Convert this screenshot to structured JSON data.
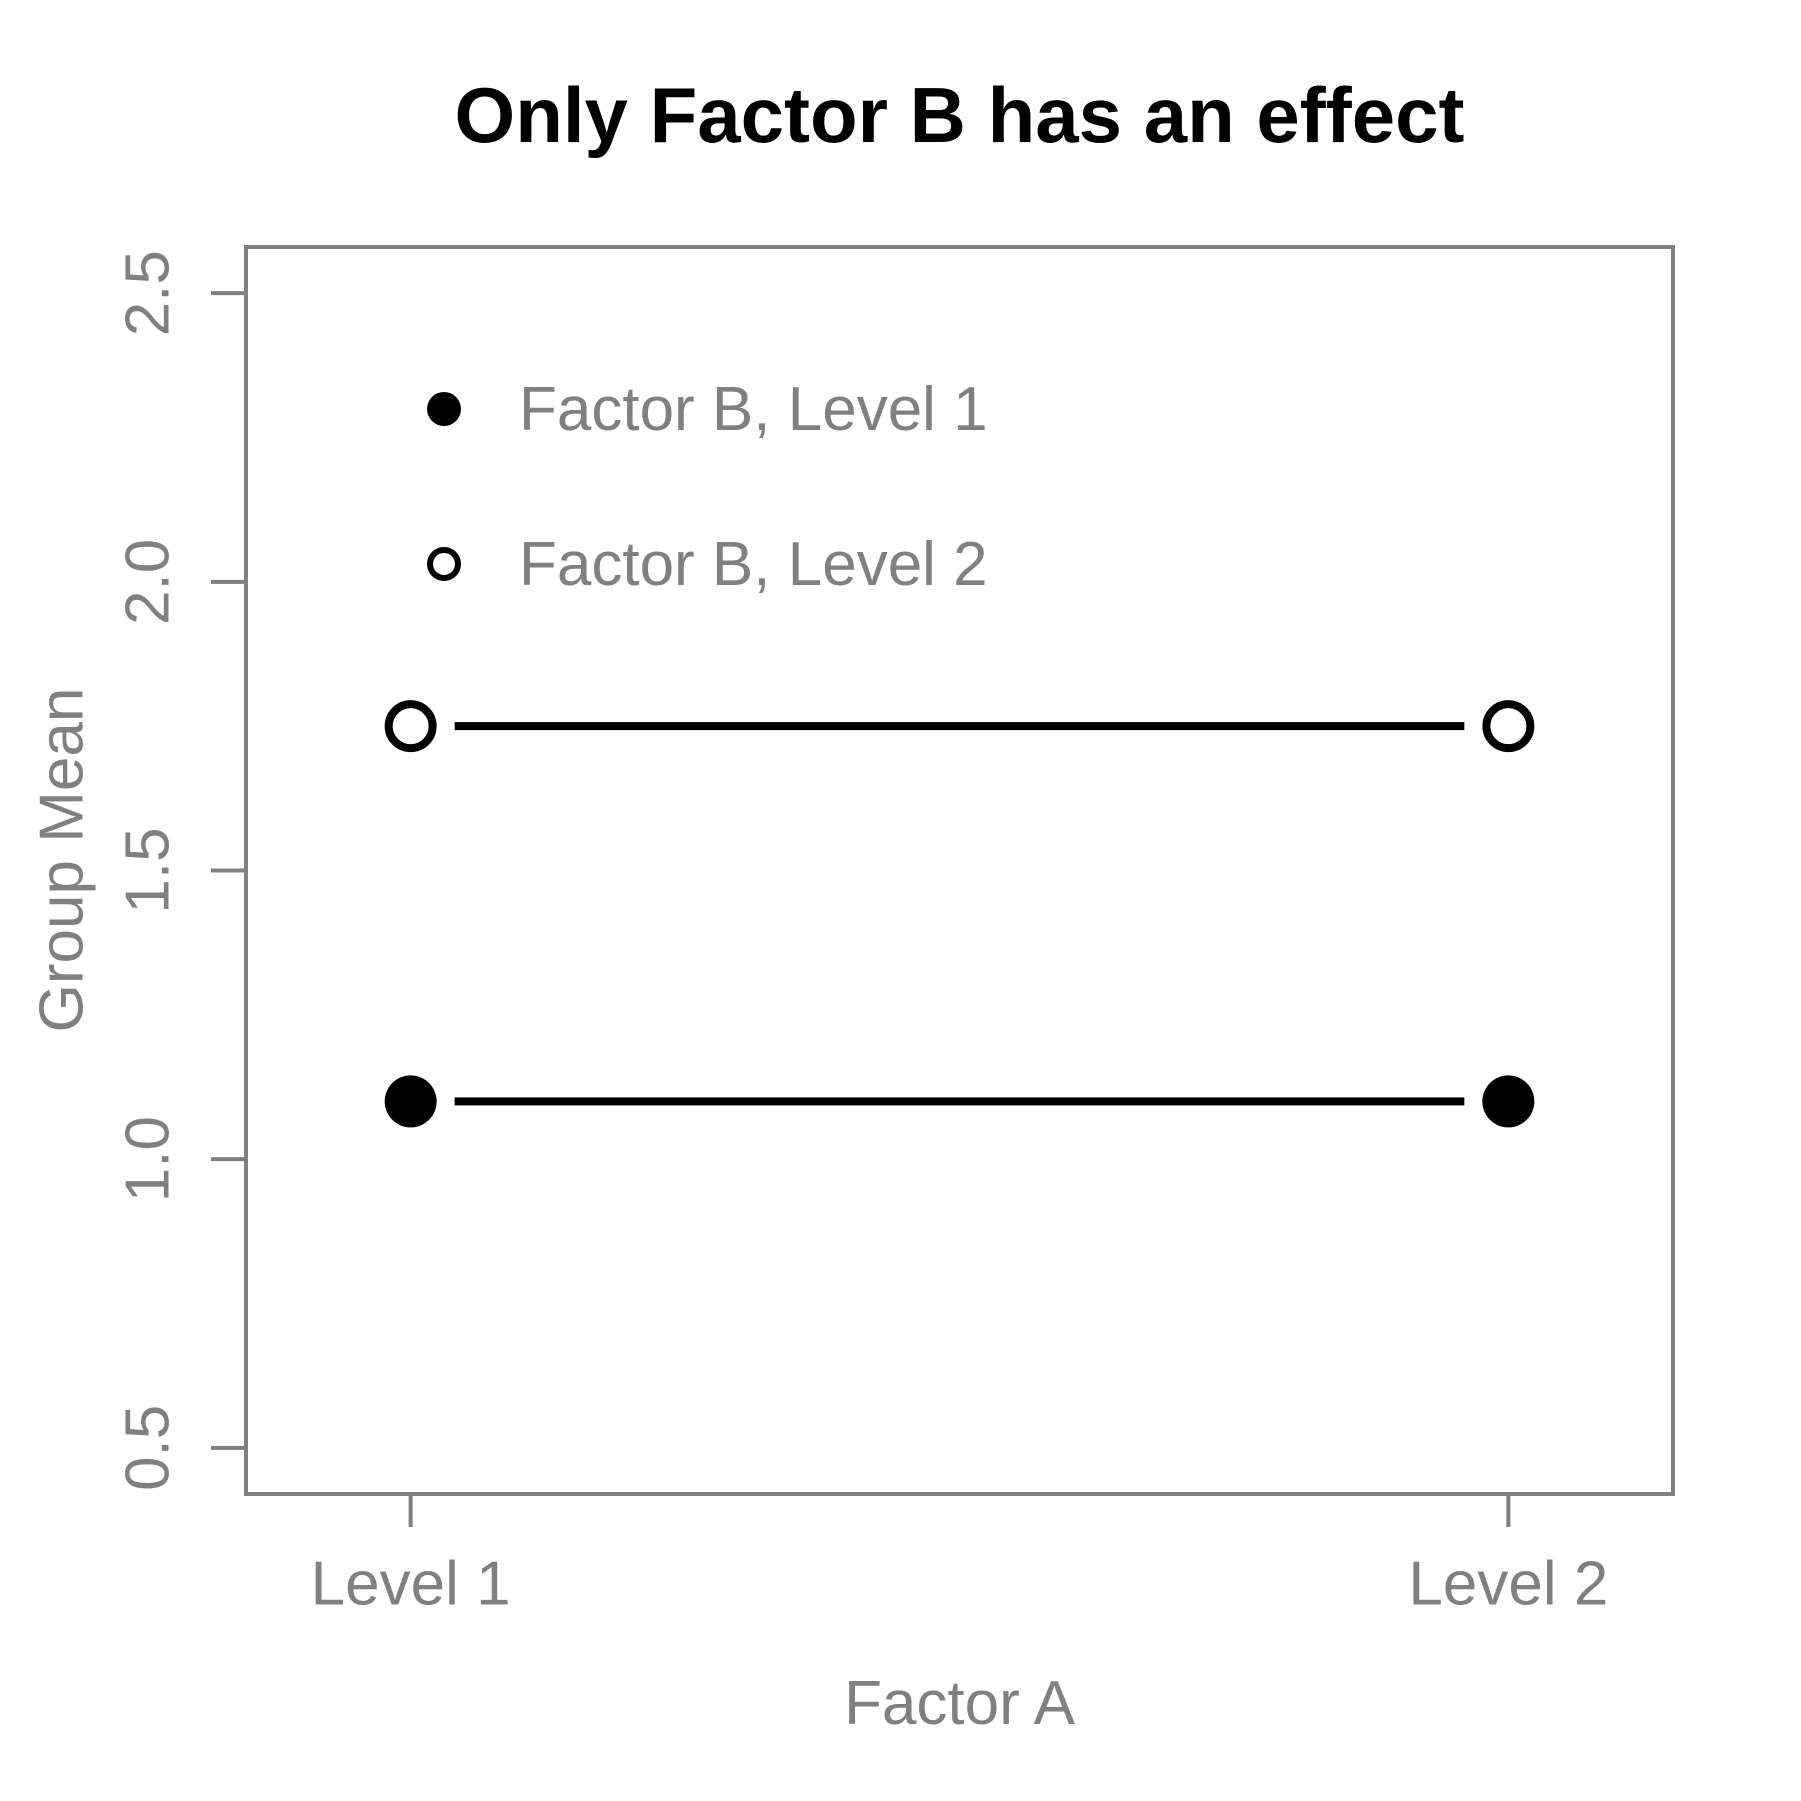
{
  "chart_data": {
    "type": "line",
    "title": "Only Factor B has an effect",
    "xlabel": "Factor A",
    "ylabel": "Group Mean",
    "x_categories": [
      "Level 1",
      "Level 2"
    ],
    "x_values": [
      1,
      2
    ],
    "xlim": [
      0.85,
      2.15
    ],
    "ylim": [
      0.42,
      2.58
    ],
    "yticks": [
      0.5,
      1.0,
      1.5,
      2.0,
      2.5
    ],
    "ytick_labels": [
      "0.5",
      "1.0",
      "1.5",
      "2.0",
      "2.5"
    ],
    "series": [
      {
        "name": "Factor B, Level 1",
        "values": [
          1.1,
          1.1
        ],
        "marker": "filled-circle",
        "color": "#000000"
      },
      {
        "name": "Factor B, Level 2",
        "values": [
          1.75,
          1.75
        ],
        "marker": "open-circle",
        "color": "#000000"
      }
    ],
    "legend_position": "top-left-inside",
    "grid": false,
    "colors": {
      "axis": "#808080",
      "text": "#808080",
      "title": "#000000",
      "series": "#000000",
      "background": "#ffffff"
    }
  }
}
